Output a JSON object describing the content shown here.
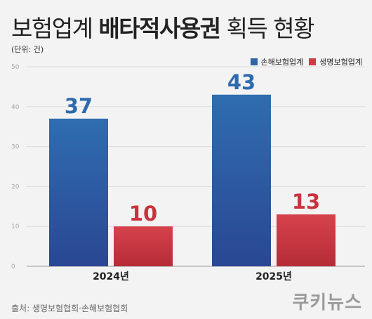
{
  "title_regular_1": "보험업계 ",
  "title_bold": "배타적사용권",
  "title_regular_2": " 획득 현황",
  "unit_label": "(단위: 건)",
  "source": "출처: 생명보험협회·손해보험협회",
  "logo_text": "쿠키뉴스",
  "colors": {
    "nonlife": "#2f66a8",
    "life": "#cf3a44",
    "nonlife_label": "#2e6aad",
    "life_label": "#c8333e"
  },
  "chart_data": {
    "type": "bar",
    "categories": [
      "2024년",
      "2025년"
    ],
    "series": [
      {
        "name": "손해보험업계",
        "values": [
          37,
          43
        ]
      },
      {
        "name": "생명보험업계",
        "values": [
          10,
          13
        ]
      }
    ],
    "ylim": [
      0,
      50
    ],
    "yticks": [
      0,
      10,
      20,
      30,
      40,
      50
    ],
    "grid": true,
    "legend_position": "top-right",
    "data_labels": true
  }
}
